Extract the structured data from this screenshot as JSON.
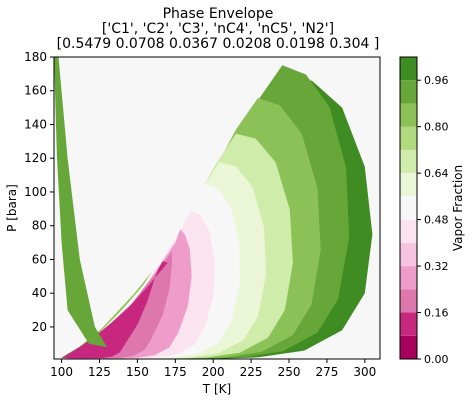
{
  "chart_data": {
    "type": "contour",
    "title": [
      "Phase Envelope",
      "['C1', 'C2', 'C3', 'nC4', 'nC5', 'N2']",
      "[0.5479 0.0708 0.0367 0.0208 0.0198 0.304 ]"
    ],
    "xlabel": "T [K]",
    "ylabel": "P [bara]",
    "xlim": [
      95,
      310
    ],
    "ylim": [
      1,
      180
    ],
    "xticks": [
      100,
      125,
      150,
      175,
      200,
      225,
      250,
      275,
      300
    ],
    "yticks": [
      20,
      40,
      60,
      80,
      100,
      120,
      140,
      160,
      180
    ],
    "outside_color": "#f7f7f7",
    "colorbar": {
      "label": "Vapor Fraction",
      "ticks": [
        "0.00",
        "0.16",
        "0.32",
        "0.48",
        "0.64",
        "0.80",
        "0.96"
      ],
      "range": [
        0,
        1.04
      ],
      "levels": [
        0,
        0.08,
        0.16,
        0.24,
        0.32,
        0.4,
        0.48,
        0.56,
        0.64,
        0.72,
        0.8,
        0.88,
        0.96,
        1.04
      ],
      "colors": [
        "#a7005e",
        "#c7277f",
        "#de77ae",
        "#ee9dcb",
        "#f6c4e1",
        "#fbe3f0",
        "#f7f7f7",
        "#eaf6d6",
        "#cfecaa",
        "#b1da7e",
        "#8cc157",
        "#67a638",
        "#3f8d22"
      ]
    },
    "two_phase_region_T_boundary": {
      "T": [
        100,
        110,
        125,
        150,
        175,
        200,
        225,
        245,
        265,
        285,
        300,
        305,
        300,
        285,
        260,
        230,
        200,
        175,
        150,
        125,
        100
      ],
      "P": [
        2,
        4,
        12,
        34,
        60,
        98,
        140,
        167,
        166,
        150,
        115,
        75,
        40,
        18,
        6,
        2,
        1,
        1,
        1,
        1,
        2
      ]
    },
    "contours_vapor_fraction": [
      {
        "level": 1.0,
        "tip": [
          245,
          167
        ]
      },
      {
        "level": 0.9,
        "tip": [
          230,
          155
        ]
      },
      {
        "level": 0.8,
        "tip": [
          215,
          137
        ]
      },
      {
        "level": 0.7,
        "tip": [
          202,
          117
        ]
      },
      {
        "level": 0.6,
        "tip": [
          193,
          102
        ]
      },
      {
        "level": 0.5,
        "tip": [
          186,
          92
        ]
      },
      {
        "level": 0.4,
        "tip": [
          179,
          78
        ]
      },
      {
        "level": 0.3,
        "tip": [
          175,
          70
        ]
      },
      {
        "level": 0.2,
        "tip": [
          173,
          65
        ]
      },
      {
        "level": 0.1,
        "tip": [
          170,
          58
        ]
      }
    ]
  }
}
